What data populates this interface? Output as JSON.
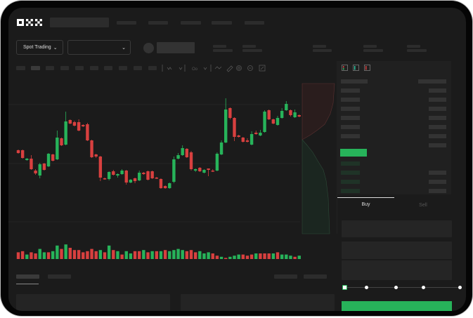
{
  "brand": {
    "logo": "OKX"
  },
  "header": {
    "mode_selector": "Spot Trading",
    "mode_icon": "chevron-down-icon",
    "pair_selector_icon": "chevron-down-icon"
  },
  "order_form": {
    "tabs": [
      {
        "label": "Buy",
        "active": true
      },
      {
        "label": "Sell",
        "active": false
      }
    ],
    "slider_percent": 0
  },
  "colors": {
    "up": "#27b35a",
    "down": "#d8403f",
    "background": "#1b1b1b",
    "panel": "#202020"
  },
  "chart": {
    "type": "candlestick",
    "candles": [
      [
        97,
        93,
        98,
        92
      ],
      [
        97,
        86,
        98,
        85
      ],
      [
        83,
        85,
        86,
        82
      ],
      [
        85,
        70,
        90,
        69
      ],
      [
        68,
        64,
        70,
        62
      ],
      [
        61,
        77,
        79,
        57
      ],
      [
        78,
        69,
        79,
        68
      ],
      [
        74,
        92,
        93,
        73
      ],
      [
        91,
        82,
        92,
        81
      ],
      [
        84,
        115,
        125,
        83
      ],
      [
        114,
        104,
        115,
        103
      ],
      [
        105,
        138,
        152,
        104
      ],
      [
        140,
        135,
        141,
        134
      ],
      [
        137,
        132,
        139,
        131
      ],
      [
        137,
        125,
        141,
        124
      ],
      [
        133,
        131,
        134,
        130
      ],
      [
        134,
        111,
        136,
        110
      ],
      [
        111,
        87,
        112,
        86
      ],
      [
        91,
        88,
        92,
        86
      ],
      [
        88,
        58,
        89,
        53
      ],
      [
        57,
        56,
        58,
        55
      ],
      [
        56,
        66,
        67,
        54
      ],
      [
        67,
        62,
        69,
        61
      ],
      [
        61,
        63,
        64,
        58
      ],
      [
        63,
        68,
        70,
        62
      ],
      [
        68,
        51,
        69,
        48
      ],
      [
        51,
        55,
        56,
        50
      ],
      [
        57,
        53,
        58,
        50
      ],
      [
        54,
        65,
        68,
        53
      ],
      [
        65,
        63,
        66,
        62
      ],
      [
        67,
        55,
        68,
        54
      ],
      [
        67,
        57,
        68,
        56
      ],
      [
        58,
        57,
        59,
        56
      ],
      [
        56,
        43,
        57,
        42
      ],
      [
        46,
        43,
        47,
        42
      ],
      [
        43,
        50,
        51,
        42
      ],
      [
        52,
        84,
        88,
        50
      ],
      [
        85,
        90,
        93,
        84
      ],
      [
        90,
        100,
        104,
        89
      ],
      [
        99,
        87,
        100,
        86
      ],
      [
        94,
        70,
        96,
        68
      ],
      [
        68,
        70,
        71,
        66
      ],
      [
        72,
        67,
        73,
        66
      ],
      [
        65,
        69,
        70,
        64
      ],
      [
        71,
        69,
        71,
        60
      ],
      [
        68,
        67,
        70,
        66
      ],
      [
        68,
        92,
        94,
        67
      ],
      [
        91,
        108,
        111,
        90
      ],
      [
        108,
        155,
        171,
        107
      ],
      [
        157,
        143,
        158,
        141
      ],
      [
        143,
        116,
        144,
        110
      ],
      [
        118,
        116,
        119,
        115
      ],
      [
        115,
        109,
        116,
        108
      ],
      [
        111,
        109,
        114,
        108
      ],
      [
        105,
        120,
        124,
        104
      ],
      [
        122,
        120,
        125,
        119
      ],
      [
        118,
        122,
        126,
        117
      ],
      [
        123,
        152,
        154,
        122
      ],
      [
        154,
        141,
        155,
        140
      ],
      [
        141,
        135,
        142,
        134
      ],
      [
        133,
        143,
        146,
        132
      ],
      [
        143,
        153,
        157,
        142
      ],
      [
        154,
        163,
        167,
        153
      ],
      [
        154,
        147,
        155,
        145
      ],
      [
        144,
        151,
        155,
        143
      ],
      [
        147,
        145,
        148,
        144
      ]
    ],
    "volumes": [
      6,
      7,
      4,
      6,
      5,
      9,
      6,
      6,
      7,
      12,
      9,
      13,
      10,
      8,
      8,
      6,
      7,
      9,
      7,
      8,
      6,
      12,
      8,
      7,
      4,
      7,
      5,
      7,
      7,
      8,
      6,
      7,
      7,
      7,
      8,
      7,
      8,
      9,
      8,
      7,
      8,
      6,
      7,
      5,
      6,
      5,
      3,
      2,
      1,
      2,
      3,
      4,
      4,
      3,
      4,
      5,
      5,
      5,
      5,
      5,
      6,
      4,
      4,
      3,
      2,
      3
    ],
    "volume_colors": [
      "d",
      "d",
      "u",
      "d",
      "d",
      "u",
      "u",
      "d",
      "u",
      "u",
      "d",
      "u",
      "d",
      "d",
      "d",
      "d",
      "d",
      "d",
      "d",
      "u",
      "d",
      "u",
      "d",
      "u",
      "d",
      "u",
      "u",
      "d",
      "d",
      "u",
      "d",
      "u",
      "d",
      "u",
      "d",
      "u",
      "u",
      "u",
      "u",
      "d",
      "d",
      "d",
      "u",
      "u",
      "u",
      "d",
      "d",
      "u",
      "d",
      "u",
      "u",
      "u",
      "d",
      "d",
      "d",
      "u",
      "d",
      "d",
      "d",
      "u",
      "d",
      "u",
      "u",
      "u",
      "d",
      "u"
    ]
  }
}
